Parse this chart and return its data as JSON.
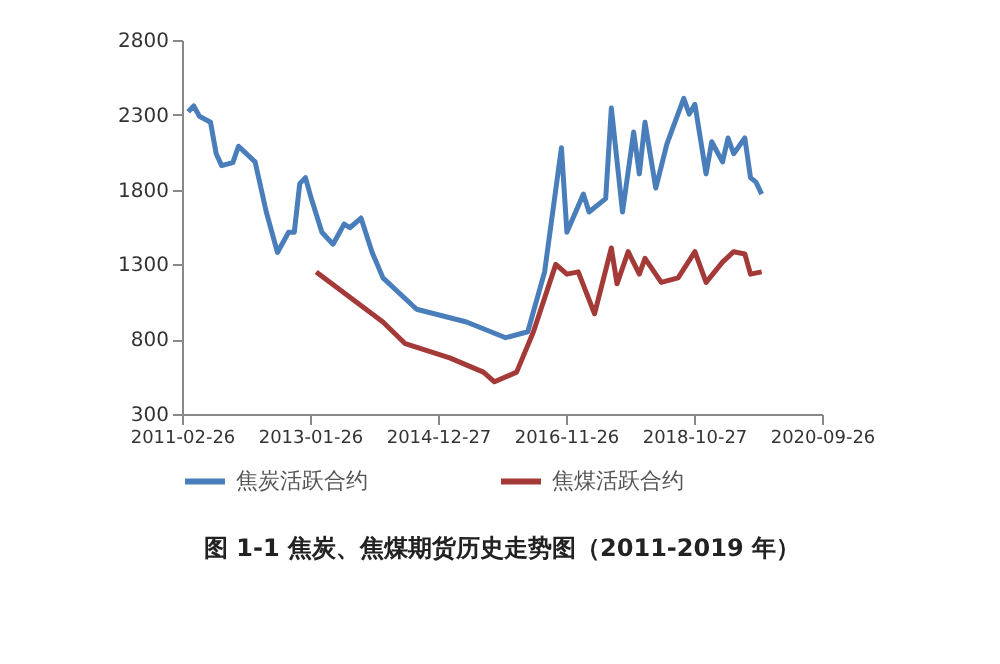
{
  "chart_data": {
    "type": "line",
    "title": "图 1-1   焦炭、焦煤期货历史走势图（2011-2019 年）",
    "ylim": [
      300,
      2800
    ],
    "yticks": [
      300,
      800,
      1300,
      1800,
      2300,
      2800
    ],
    "xlim": [
      "2011-02-26",
      "2020-09-26"
    ],
    "xticks": [
      "2011-02-26",
      "2013-01-26",
      "2014-12-27",
      "2016-11-26",
      "2018-10-27",
      "2020-09-26"
    ],
    "grid": false,
    "legend": "bottom",
    "marker": "none",
    "line_style": "solid",
    "series": [
      {
        "name": "焦炭活跃合约",
        "color": "#4a7ebb",
        "x": [
          "2011-04",
          "2011-05",
          "2011-06",
          "2011-08",
          "2011-09",
          "2011-10",
          "2011-12",
          "2012-01",
          "2012-04",
          "2012-06",
          "2012-08",
          "2012-10",
          "2012-11",
          "2012-12",
          "2013-01",
          "2013-02",
          "2013-04",
          "2013-06",
          "2013-08",
          "2013-09",
          "2013-11",
          "2014-01",
          "2014-03",
          "2014-09",
          "2015-06",
          "2016-01",
          "2016-05",
          "2016-08",
          "2016-11",
          "2016-12",
          "2017-03",
          "2017-04",
          "2017-07",
          "2017-08",
          "2017-10",
          "2017-12",
          "2018-01",
          "2018-02",
          "2018-04",
          "2018-06",
          "2018-09",
          "2018-10",
          "2018-11",
          "2019-01",
          "2019-02",
          "2019-04",
          "2019-05",
          "2019-06",
          "2019-08",
          "2019-09",
          "2019-10",
          "2019-11"
        ],
        "values": [
          2320,
          2360,
          2290,
          2250,
          2040,
          1960,
          1980,
          2090,
          1985,
          1650,
          1380,
          1515,
          1515,
          1840,
          1880,
          1745,
          1515,
          1435,
          1570,
          1545,
          1610,
          1380,
          1210,
          1000,
          915,
          810,
          850,
          1250,
          2080,
          1515,
          1770,
          1650,
          1740,
          2345,
          1650,
          2185,
          1905,
          2250,
          1810,
          2105,
          2410,
          2305,
          2370,
          1905,
          2120,
          1985,
          2145,
          2040,
          2145,
          1880,
          1850,
          1770
        ]
      },
      {
        "name": "焦煤活跃合约",
        "color": "#a33a38",
        "x": [
          "2013-03",
          "2014-03",
          "2014-07",
          "2015-03",
          "2015-09",
          "2015-11",
          "2016-03",
          "2016-06",
          "2016-10",
          "2016-12",
          "2017-02",
          "2017-05",
          "2017-08",
          "2017-09",
          "2017-11",
          "2018-01",
          "2018-02",
          "2018-05",
          "2018-08",
          "2018-11",
          "2019-01",
          "2019-04",
          "2019-06",
          "2019-08",
          "2019-09",
          "2019-11"
        ],
        "values": [
          1250,
          915,
          770,
          675,
          580,
          515,
          580,
          850,
          1300,
          1235,
          1250,
          970,
          1410,
          1170,
          1385,
          1235,
          1340,
          1180,
          1210,
          1385,
          1180,
          1315,
          1385,
          1370,
          1235,
          1250
        ]
      }
    ]
  }
}
